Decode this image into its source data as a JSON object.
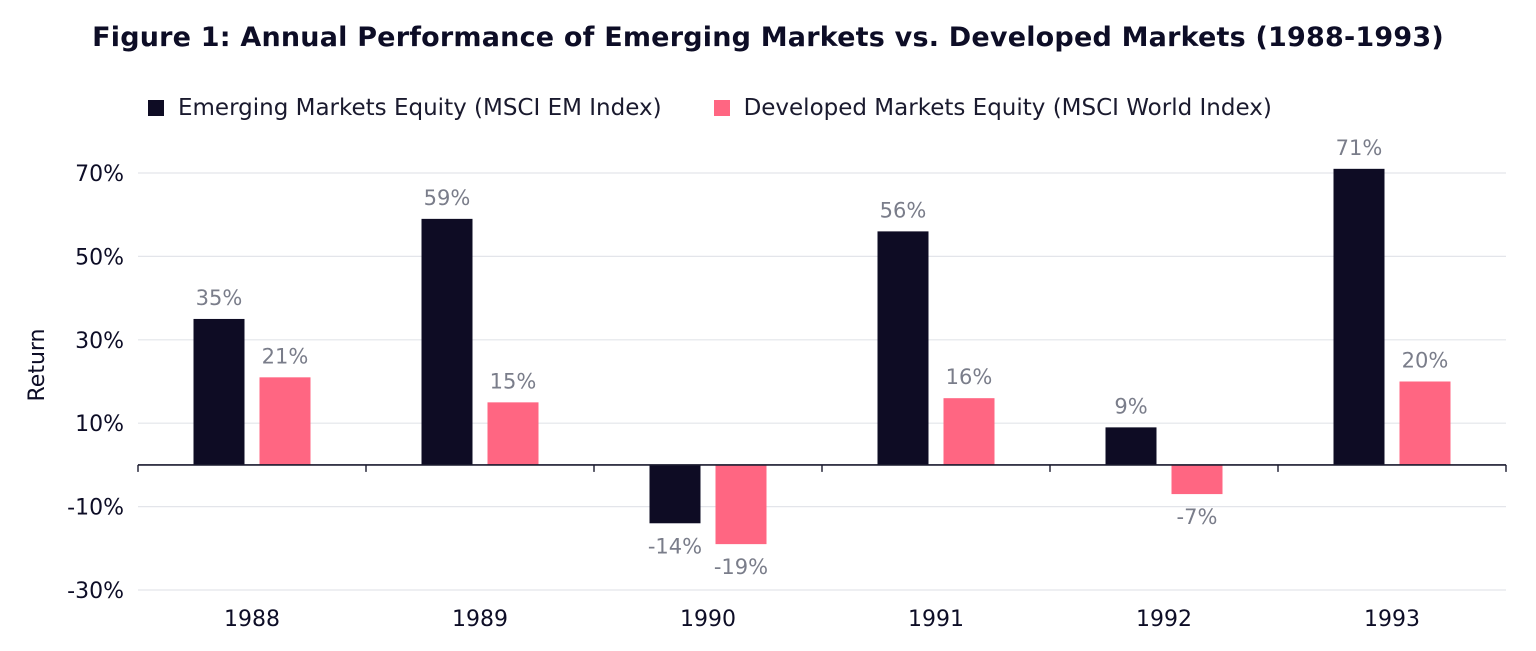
{
  "chart_data": {
    "type": "bar",
    "title": "Figure 1: Annual Performance of Emerging Markets vs. Developed Markets (1988-1993)",
    "xlabel": "",
    "ylabel": "Return",
    "categories": [
      "1988",
      "1989",
      "1990",
      "1991",
      "1992",
      "1993"
    ],
    "series": [
      {
        "name": "Emerging Markets Equity (MSCI EM Index)",
        "color": "#0e0c24",
        "values": [
          35,
          59,
          -14,
          56,
          9,
          71
        ],
        "labels": [
          "35%",
          "59%",
          "-14%",
          "56%",
          "9%",
          "71%"
        ]
      },
      {
        "name": "Developed Markets Equity (MSCI World Index)",
        "color": "#ff6682",
        "values": [
          21,
          15,
          -19,
          16,
          -7,
          20
        ],
        "labels": [
          "21%",
          "15%",
          "-19%",
          "16%",
          "-7%",
          "20%"
        ]
      }
    ],
    "y_ticks": [
      70,
      50,
      30,
      10,
      -10,
      -30
    ],
    "y_tick_labels": [
      "70%",
      "50%",
      "30%",
      "10%",
      "-10%",
      "-30%"
    ],
    "ylim": [
      -30,
      70
    ],
    "grid": true,
    "legend_position": "top-center"
  }
}
